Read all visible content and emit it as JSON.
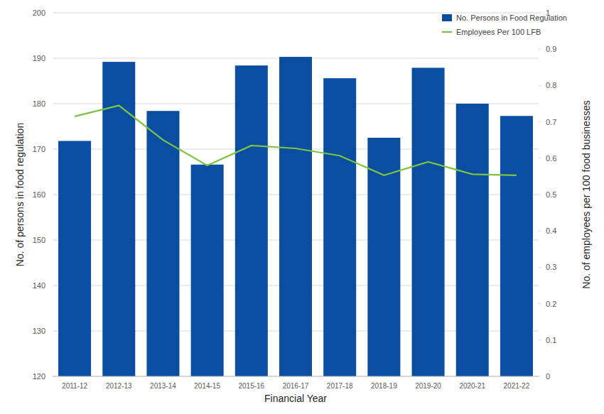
{
  "chart_data": {
    "type": "bar",
    "x_label": "Financial Year",
    "y_label": "No. of persons in food regulation",
    "y2_label": "No. of employees per 100 food businesses",
    "categories": [
      "2011-12",
      "2012-13",
      "2013-14",
      "2014-15",
      "2015-16",
      "2016-17",
      "2017-18",
      "2018-19",
      "2019-20",
      "2020-21",
      "2021-22"
    ],
    "series": [
      {
        "name": "No. Persons in Food Regulation",
        "type": "bar",
        "color": "#0a4ea2",
        "axis": "y",
        "values": [
          171.8,
          189.2,
          178.4,
          166.6,
          188.4,
          190.3,
          185.6,
          172.5,
          187.9,
          180.0,
          177.3
        ]
      },
      {
        "name": "Employees Per 100 LFB",
        "type": "line",
        "color": "#7dc242",
        "axis": "y2",
        "marker": "none",
        "line_style": "solid",
        "values": [
          0.715,
          0.745,
          0.65,
          0.58,
          0.635,
          0.627,
          0.607,
          0.553,
          0.59,
          0.556,
          0.553
        ]
      }
    ],
    "ylim": [
      120,
      200
    ],
    "yticks": [
      120,
      130,
      140,
      150,
      160,
      170,
      180,
      190,
      200
    ],
    "y2lim": [
      0,
      1
    ],
    "y2ticks": [
      0,
      0.1,
      0.2,
      0.3,
      0.4,
      0.5,
      0.6,
      0.7,
      0.8,
      0.9,
      1
    ],
    "grid": true,
    "legend": "top-right"
  }
}
